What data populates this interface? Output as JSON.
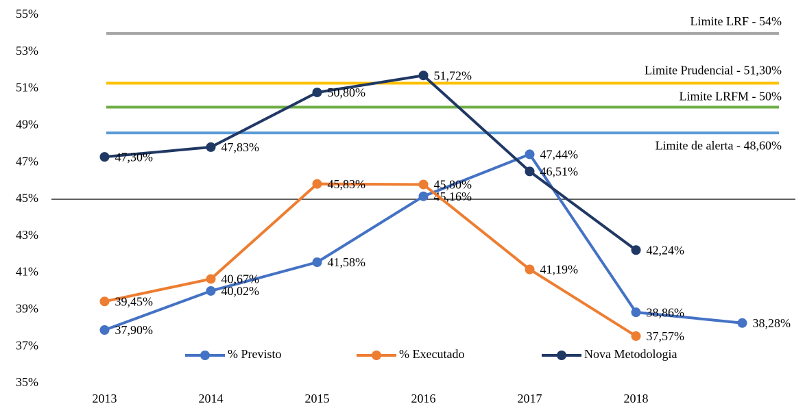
{
  "chart_data": {
    "type": "line",
    "categories": [
      "2013",
      "2014",
      "2015",
      "2016",
      "2017",
      "2018",
      null
    ],
    "series": [
      {
        "name": "% Previsto",
        "color": "#4472c4",
        "values": [
          37.9,
          40.02,
          41.58,
          45.16,
          47.44,
          38.86,
          38.28
        ],
        "value_labels": [
          "37,90%",
          "40,02%",
          "41,58%",
          "45,16%",
          "47,44%",
          "38,86%",
          "38,28%"
        ]
      },
      {
        "name": "% Executado",
        "color": "#ed7d31",
        "values": [
          39.45,
          40.67,
          45.83,
          45.8,
          41.19,
          37.57,
          null
        ],
        "value_labels": [
          "39,45%",
          "40,67%",
          "45,83%",
          "45,80%",
          "41,19%",
          "37,57%",
          null
        ]
      },
      {
        "name": "Nova Metodologia",
        "color": "#203864",
        "values": [
          47.3,
          47.83,
          50.8,
          51.72,
          46.51,
          42.24,
          null
        ],
        "value_labels": [
          "47,30%",
          "47,83%",
          "50,80%",
          "51,72%",
          "46,51%",
          "42,24%",
          null
        ]
      }
    ],
    "reference_lines": [
      {
        "label": "Limite LRF - 54%",
        "value": 54,
        "color": "#a5a5a5"
      },
      {
        "label": "Limite Prudencial - 51,30%",
        "value": 51.3,
        "color": "#ffc000"
      },
      {
        "label": "Limite LRFM - 50%",
        "value": 50,
        "color": "#70ad47"
      },
      {
        "label": "Limite de alerta - 48,60%",
        "value": 48.6,
        "color": "#5b9bd5"
      }
    ],
    "xaxis_crosses": 45,
    "ylim": [
      35,
      55
    ],
    "yticks": [
      {
        "value": 35,
        "label": "35%"
      },
      {
        "value": 37,
        "label": "37%"
      },
      {
        "value": 39,
        "label": "39%"
      },
      {
        "value": 41,
        "label": "41%"
      },
      {
        "value": 43,
        "label": "43%"
      },
      {
        "value": 45,
        "label": "45%"
      },
      {
        "value": 47,
        "label": "47%"
      },
      {
        "value": 49,
        "label": "49%"
      },
      {
        "value": 51,
        "label": "51%"
      },
      {
        "value": 53,
        "label": "53%"
      },
      {
        "value": 55,
        "label": "55%"
      }
    ],
    "grid": false,
    "legend": "bottom"
  }
}
